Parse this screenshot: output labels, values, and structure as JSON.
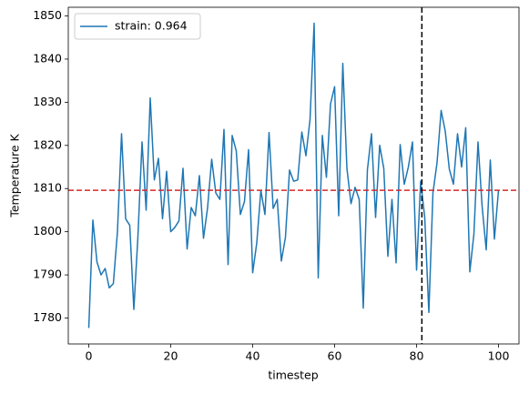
{
  "chart_data": {
    "type": "line",
    "xlabel": "timestep",
    "ylabel": "Temperature K",
    "x": [
      0,
      1,
      2,
      3,
      4,
      5,
      6,
      7,
      8,
      9,
      10,
      11,
      12,
      13,
      14,
      15,
      16,
      17,
      18,
      19,
      20,
      21,
      22,
      23,
      24,
      25,
      26,
      27,
      28,
      29,
      30,
      31,
      32,
      33,
      34,
      35,
      36,
      37,
      38,
      39,
      40,
      41,
      42,
      43,
      44,
      45,
      46,
      47,
      48,
      49,
      50,
      51,
      52,
      53,
      54,
      55,
      56,
      57,
      58,
      59,
      60,
      61,
      62,
      63,
      64,
      65,
      66,
      67,
      68,
      69,
      70,
      71,
      72,
      73,
      74,
      75,
      76,
      77,
      78,
      79,
      80,
      81,
      82,
      83,
      84,
      85,
      86,
      87,
      88,
      89,
      90,
      91,
      92,
      93,
      94,
      95,
      96,
      97,
      98,
      99,
      100
    ],
    "series": [
      {
        "name": "strain: 0.964",
        "color": "#1f77b4",
        "values": [
          1777.7,
          1802.7,
          1793,
          1790,
          1791.5,
          1787,
          1788,
          1800,
          1822.7,
          1803,
          1801.5,
          1782,
          1799,
          1820.8,
          1805,
          1831,
          1812,
          1817,
          1803,
          1814,
          1800,
          1801,
          1802.5,
          1814.7,
          1796,
          1805.6,
          1803.7,
          1813,
          1798.5,
          1805.6,
          1816.8,
          1809,
          1807.5,
          1823.7,
          1792.4,
          1822.3,
          1818.7,
          1804,
          1807,
          1819,
          1790.5,
          1797.4,
          1809.6,
          1804,
          1823,
          1805.4,
          1807.5,
          1793.2,
          1798.7,
          1814.3,
          1811.7,
          1812,
          1823.1,
          1817.6,
          1826,
          1848.3,
          1789.3,
          1822.3,
          1812.6,
          1829.6,
          1833.6,
          1803.7,
          1839,
          1814.7,
          1806.5,
          1810.3,
          1807.5,
          1782.3,
          1814.3,
          1822.7,
          1803.3,
          1820,
          1814.7,
          1794.3,
          1807.5,
          1792.8,
          1820.2,
          1811,
          1815,
          1820.8,
          1791.1,
          1811.7,
          1803.3,
          1781.3,
          1809,
          1816,
          1828.1,
          1823.3,
          1814.5,
          1811,
          1822.7,
          1815,
          1824.1,
          1790.7,
          1799.5,
          1820.8,
          1805.9,
          1795.8,
          1816.6,
          1798.3,
          1809.6
        ]
      }
    ],
    "hlines": [
      {
        "value": 1809.6,
        "color": "#d62728"
      }
    ],
    "vlines": [
      {
        "value": 81.3,
        "color": "#000000"
      }
    ],
    "xlim": [
      -5,
      105
    ],
    "xticks": [
      0,
      20,
      40,
      60,
      80,
      100
    ],
    "ylim": [
      1774,
      1852
    ],
    "yticks": [
      1780,
      1790,
      1800,
      1810,
      1820,
      1830,
      1840,
      1850
    ],
    "legend": "upper left",
    "grid": false
  }
}
